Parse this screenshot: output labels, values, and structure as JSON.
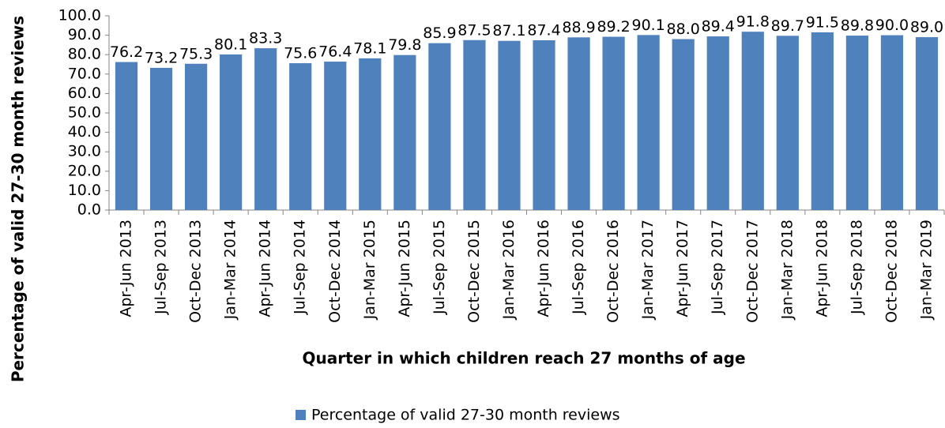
{
  "chart_data": {
    "type": "bar",
    "x_label": "Quarter in which children reach 27 months of age",
    "y_label": "Percentage of valid 27-30 month reviews",
    "categories": [
      "Apr-Jun 2013",
      "Jul-Sep 2013",
      "Oct-Dec 2013",
      "Jan-Mar 2014",
      "Apr-Jun 2014",
      "Jul-Sep 2014",
      "Oct-Dec 2014",
      "Jan-Mar 2015",
      "Apr-Jun 2015",
      "Jul-Sep 2015",
      "Oct-Dec 2015",
      "Jan-Mar 2016",
      "Apr-Jun 2016",
      "Jul-Sep 2016",
      "Oct-Dec 2016",
      "Jan-Mar 2017",
      "Apr-Jun 2017",
      "Jul-Sep 2017",
      "Oct-Dec 2017",
      "Jan-Mar 2018",
      "Apr-Jun 2018",
      "Jul-Sep 2018",
      "Oct-Dec 2018",
      "Jan-Mar 2019"
    ],
    "series": [
      {
        "name": "Percentage of valid 27-30 month reviews",
        "color": "#4f81bd",
        "values": [
          76.2,
          73.2,
          75.3,
          80.1,
          83.3,
          75.6,
          76.4,
          78.1,
          79.8,
          85.9,
          87.5,
          87.1,
          87.4,
          88.9,
          89.2,
          90.1,
          88.0,
          89.4,
          91.8,
          89.7,
          91.5,
          89.8,
          90.0,
          89.0
        ],
        "value_labels": [
          "76.2",
          "73.2",
          "75.3",
          "80.1",
          "83.3",
          "75.6",
          "76.4",
          "78.1",
          "79.8",
          "85.9",
          "87.5",
          "87.1",
          "87.4",
          "88.9",
          "89.2",
          "90.1",
          "88.0",
          "89.4",
          "91.8",
          "89.7",
          "91.5",
          "89.8",
          "90.0",
          "89.0"
        ]
      }
    ],
    "ylim": [
      0,
      100
    ],
    "yticks": [
      {
        "value": 0,
        "label": "0.0"
      },
      {
        "value": 10,
        "label": "10.0"
      },
      {
        "value": 20,
        "label": "20.0"
      },
      {
        "value": 30,
        "label": "30.0"
      },
      {
        "value": 40,
        "label": "40.0"
      },
      {
        "value": 50,
        "label": "50.0"
      },
      {
        "value": 60,
        "label": "60.0"
      },
      {
        "value": 70,
        "label": "70.0"
      },
      {
        "value": 80,
        "label": "80.0"
      },
      {
        "value": 90,
        "label": "90.0"
      },
      {
        "value": 100,
        "label": "100.0"
      }
    ],
    "legend": "bottom"
  }
}
